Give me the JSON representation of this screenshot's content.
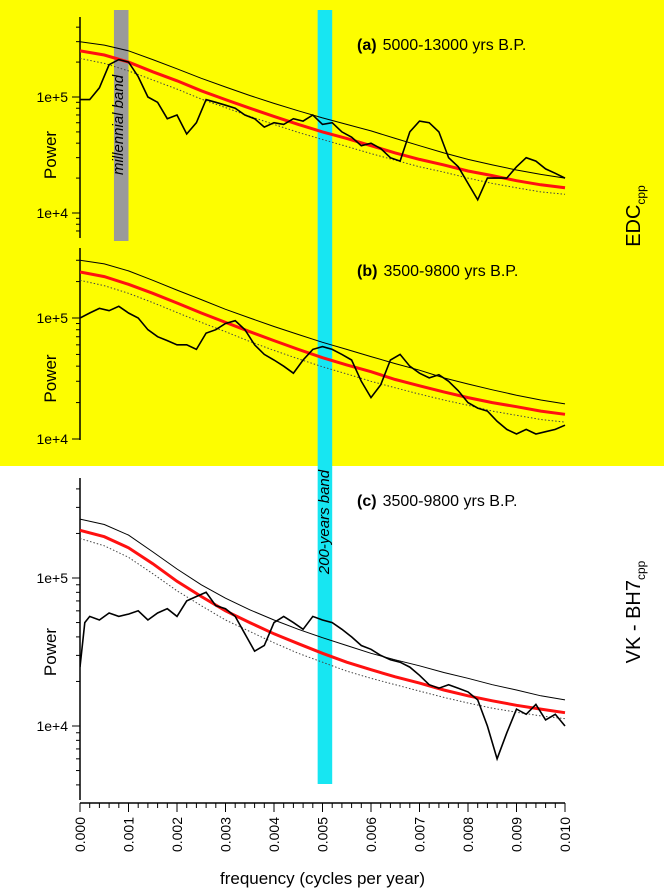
{
  "chart_data": {
    "type": "line",
    "xlabel": "frequency (cycles per year)",
    "xlim": [
      0.0,
      0.01
    ],
    "x_ticks": [
      "0.000",
      "0.001",
      "0.002",
      "0.003",
      "0.004",
      "0.005",
      "0.006",
      "0.007",
      "0.008",
      "0.009",
      "0.010"
    ],
    "y_scale": "log",
    "highlight_color": "#fdfd00",
    "band_color": "#17e6f2",
    "millennial_band": {
      "label": "millennial band",
      "x_range": [
        0.0007,
        0.001
      ],
      "color": "#9a9a9a"
    },
    "band_200yr": {
      "label": "200-years band",
      "x_range": [
        0.0049,
        0.0052
      ]
    },
    "group_labels": {
      "top": "EDC",
      "top_sub": "cpp",
      "bottom": "VK - BH7",
      "bottom_sub": "cpp"
    },
    "panels": [
      {
        "id": "a",
        "tag": "(a)",
        "title": "5000-13000 yrs B.P.",
        "ylabel": "Power",
        "ylim": [
          8000,
          400000
        ],
        "y_ticks": [
          {
            "value": 100000,
            "label": "1e+5"
          },
          {
            "value": 10000,
            "label": "1e+4"
          }
        ],
        "background": "#fdfd00",
        "series": [
          {
            "role": "spectrum",
            "color": "#000000",
            "x": [
              0.0,
              0.0002,
              0.0004,
              0.0006,
              0.0008,
              0.001,
              0.0012,
              0.0014,
              0.0016,
              0.0018,
              0.002,
              0.0022,
              0.0024,
              0.0026,
              0.0028,
              0.003,
              0.0032,
              0.0034,
              0.0036,
              0.0038,
              0.004,
              0.0042,
              0.0044,
              0.0046,
              0.0048,
              0.005,
              0.0052,
              0.0054,
              0.0056,
              0.0058,
              0.006,
              0.0062,
              0.0064,
              0.0066,
              0.0068,
              0.007,
              0.0072,
              0.0074,
              0.0076,
              0.0078,
              0.008,
              0.0082,
              0.0084,
              0.0086,
              0.0088,
              0.009,
              0.0092,
              0.0094,
              0.0096,
              0.0098,
              0.01
            ],
            "values": [
              95000,
              95000,
              120000,
              190000,
              210000,
              200000,
              150000,
              100000,
              90000,
              65000,
              70000,
              48000,
              60000,
              95000,
              90000,
              85000,
              80000,
              70000,
              65000,
              55000,
              60000,
              58000,
              65000,
              62000,
              70000,
              58000,
              60000,
              50000,
              45000,
              38000,
              40000,
              36000,
              30000,
              28000,
              50000,
              62000,
              60000,
              50000,
              30000,
              25000,
              18000,
              13000,
              20000,
              20000,
              20000,
              25000,
              30000,
              28000,
              24000,
              22000,
              20000
            ]
          },
          {
            "role": "mean",
            "color": "#ff1010",
            "x": [
              0.0,
              0.0005,
              0.001,
              0.0015,
              0.002,
              0.0025,
              0.003,
              0.0035,
              0.004,
              0.0045,
              0.005,
              0.0055,
              0.006,
              0.0065,
              0.007,
              0.0075,
              0.008,
              0.0085,
              0.009,
              0.0095,
              0.01
            ],
            "values": [
              250000,
              230000,
              200000,
              165000,
              138000,
              113000,
              95000,
              80000,
              68000,
              58000,
              50000,
              44000,
              38000,
              33000,
              29000,
              26000,
              23000,
              21000,
              19000,
              17500,
              16500
            ]
          },
          {
            "role": "upper",
            "color": "#000000",
            "x": [
              0.0,
              0.0005,
              0.001,
              0.0015,
              0.002,
              0.0025,
              0.003,
              0.0035,
              0.004,
              0.0045,
              0.005,
              0.0055,
              0.006,
              0.0065,
              0.007,
              0.0075,
              0.008,
              0.0085,
              0.009,
              0.0095,
              0.01
            ],
            "values": [
              300000,
              280000,
              250000,
              210000,
              175000,
              145000,
              122000,
              103000,
              88000,
              76000,
              66000,
              58000,
              51000,
              44000,
              38000,
              33000,
              29000,
              26000,
              23500,
              21500,
              20000
            ]
          },
          {
            "role": "lower",
            "color": "#444444",
            "x": [
              0.0,
              0.0005,
              0.001,
              0.0015,
              0.002,
              0.0025,
              0.003,
              0.0035,
              0.004,
              0.0045,
              0.005,
              0.0055,
              0.006,
              0.0065,
              0.007,
              0.0075,
              0.008,
              0.0085,
              0.009,
              0.0095,
              0.01
            ],
            "values": [
              215000,
              195000,
              168000,
              140000,
              117000,
              96000,
              81000,
              68000,
              58000,
              49500,
              43000,
              37500,
              32500,
              28500,
              25000,
              22500,
              20000,
              18000,
              16500,
              15200,
              14500
            ]
          }
        ]
      },
      {
        "id": "b",
        "tag": "(b)",
        "title": "3500-9800 yrs B.P.",
        "ylabel": "Power",
        "ylim": [
          8000,
          400000
        ],
        "y_ticks": [
          {
            "value": 100000,
            "label": "1e+5"
          },
          {
            "value": 10000,
            "label": "1e+4"
          }
        ],
        "background": "#fdfd00",
        "series": [
          {
            "role": "spectrum",
            "color": "#000000",
            "x": [
              0.0,
              0.0002,
              0.0004,
              0.0006,
              0.0008,
              0.001,
              0.0012,
              0.0014,
              0.0016,
              0.0018,
              0.002,
              0.0022,
              0.0024,
              0.0026,
              0.0028,
              0.003,
              0.0032,
              0.0034,
              0.0036,
              0.0038,
              0.004,
              0.0042,
              0.0044,
              0.0046,
              0.0048,
              0.005,
              0.0052,
              0.0054,
              0.0056,
              0.0058,
              0.006,
              0.0062,
              0.0064,
              0.0066,
              0.0068,
              0.007,
              0.0072,
              0.0074,
              0.0076,
              0.0078,
              0.008,
              0.0082,
              0.0084,
              0.0086,
              0.0088,
              0.009,
              0.0092,
              0.0094,
              0.0096,
              0.0098,
              0.01
            ],
            "values": [
              100000,
              110000,
              120000,
              115000,
              125000,
              110000,
              100000,
              80000,
              70000,
              65000,
              60000,
              60000,
              55000,
              75000,
              80000,
              90000,
              95000,
              80000,
              60000,
              50000,
              45000,
              40000,
              35000,
              45000,
              55000,
              58000,
              55000,
              50000,
              45000,
              30000,
              22000,
              28000,
              45000,
              50000,
              40000,
              35000,
              32000,
              34000,
              30000,
              25000,
              20000,
              18000,
              17000,
              14000,
              12000,
              11000,
              12000,
              11000,
              11500,
              12000,
              13000
            ]
          },
          {
            "role": "mean",
            "color": "#ff1010",
            "x": [
              0.0,
              0.0005,
              0.001,
              0.0015,
              0.002,
              0.0025,
              0.003,
              0.0035,
              0.004,
              0.0045,
              0.005,
              0.0055,
              0.006,
              0.0065,
              0.007,
              0.0075,
              0.008,
              0.0085,
              0.009,
              0.0095,
              0.01
            ],
            "values": [
              240000,
              220000,
              190000,
              160000,
              133000,
              110000,
              92000,
              77000,
              65000,
              55000,
              47000,
              41000,
              36000,
              31000,
              27500,
              24500,
              22000,
              20000,
              18500,
              17000,
              16000
            ]
          },
          {
            "role": "upper",
            "color": "#000000",
            "x": [
              0.0,
              0.0005,
              0.001,
              0.0015,
              0.002,
              0.0025,
              0.003,
              0.0035,
              0.004,
              0.0045,
              0.005,
              0.0055,
              0.006,
              0.0065,
              0.007,
              0.0075,
              0.008,
              0.0085,
              0.009,
              0.0095,
              0.01
            ],
            "values": [
              300000,
              280000,
              245000,
              205000,
              170000,
              142000,
              118000,
              100000,
              85000,
              73000,
              63000,
              55000,
              48000,
              42000,
              37000,
              32000,
              28500,
              25500,
              23000,
              21000,
              19500
            ]
          },
          {
            "role": "lower",
            "color": "#444444",
            "x": [
              0.0,
              0.0005,
              0.001,
              0.0015,
              0.002,
              0.0025,
              0.003,
              0.0035,
              0.004,
              0.0045,
              0.005,
              0.0055,
              0.006,
              0.0065,
              0.007,
              0.0075,
              0.008,
              0.0085,
              0.009,
              0.0095,
              0.01
            ],
            "values": [
              205000,
              185000,
              160000,
              134000,
              111000,
              92000,
              77000,
              64000,
              54000,
              46000,
              39500,
              34500,
              30000,
              26500,
              23500,
              21000,
              19000,
              17000,
              15700,
              14500,
              13800
            ]
          }
        ]
      },
      {
        "id": "c",
        "tag": "(c)",
        "title": "3500-9800 yrs B.P.",
        "ylabel": "Power",
        "ylim": [
          4000,
          400000
        ],
        "y_ticks": [
          {
            "value": 100000,
            "label": "1e+5"
          },
          {
            "value": 10000,
            "label": "1e+4"
          }
        ],
        "background": "#ffffff",
        "series": [
          {
            "role": "spectrum",
            "color": "#000000",
            "x": [
              0.0,
              0.0001,
              0.0002,
              0.0004,
              0.0006,
              0.0008,
              0.001,
              0.0012,
              0.0014,
              0.0016,
              0.0018,
              0.002,
              0.0022,
              0.0024,
              0.0026,
              0.0028,
              0.003,
              0.0032,
              0.0034,
              0.0036,
              0.0038,
              0.004,
              0.0042,
              0.0044,
              0.0046,
              0.0048,
              0.005,
              0.0052,
              0.0054,
              0.0056,
              0.0058,
              0.006,
              0.0062,
              0.0064,
              0.0066,
              0.0068,
              0.007,
              0.0072,
              0.0074,
              0.0076,
              0.0078,
              0.008,
              0.0082,
              0.0084,
              0.0086,
              0.0088,
              0.009,
              0.0092,
              0.0094,
              0.0096,
              0.0098,
              0.01
            ],
            "values": [
              25000,
              50000,
              55000,
              52000,
              58000,
              55000,
              57000,
              60000,
              52000,
              58000,
              62000,
              55000,
              70000,
              75000,
              80000,
              65000,
              62000,
              55000,
              42000,
              32000,
              35000,
              50000,
              55000,
              50000,
              45000,
              55000,
              52000,
              50000,
              45000,
              40000,
              35000,
              33000,
              30000,
              28000,
              27000,
              25000,
              22000,
              19000,
              18000,
              19000,
              18000,
              17000,
              15000,
              10000,
              6000,
              9000,
              13000,
              12000,
              14000,
              11000,
              12000,
              10000
            ]
          },
          {
            "role": "mean",
            "color": "#ff1010",
            "x": [
              0.0,
              0.0005,
              0.001,
              0.0015,
              0.002,
              0.0025,
              0.003,
              0.0035,
              0.004,
              0.0045,
              0.005,
              0.0055,
              0.006,
              0.0065,
              0.007,
              0.0075,
              0.008,
              0.0085,
              0.009,
              0.0095,
              0.01
            ],
            "values": [
              210000,
              190000,
              160000,
              125000,
              95000,
              75000,
              60000,
              50000,
              42000,
              36000,
              31000,
              27000,
              24000,
              21500,
              19500,
              17500,
              16000,
              14800,
              13800,
              13000,
              12300
            ]
          },
          {
            "role": "upper",
            "color": "#000000",
            "x": [
              0.0,
              0.0005,
              0.001,
              0.0015,
              0.002,
              0.0025,
              0.003,
              0.0035,
              0.004,
              0.0045,
              0.005,
              0.0055,
              0.006,
              0.0065,
              0.007,
              0.0075,
              0.008,
              0.0085,
              0.009,
              0.0095,
              0.01
            ],
            "values": [
              250000,
              230000,
              195000,
              150000,
              115000,
              90000,
              73000,
              61000,
              52000,
              45000,
              39500,
              35000,
              31000,
              28000,
              25500,
              23000,
              21000,
              19000,
              17500,
              16000,
              15000
            ]
          },
          {
            "role": "lower",
            "color": "#444444",
            "x": [
              0.0,
              0.0005,
              0.001,
              0.0015,
              0.002,
              0.0025,
              0.003,
              0.0035,
              0.004,
              0.0045,
              0.005,
              0.0055,
              0.006,
              0.0065,
              0.007,
              0.0075,
              0.008,
              0.0085,
              0.009,
              0.0095,
              0.01
            ],
            "values": [
              185000,
              165000,
              138000,
              107000,
              82000,
              65000,
              52000,
              43500,
              36500,
              31000,
              27000,
              23500,
              21000,
              19000,
              17200,
              15600,
              14300,
              13200,
              12400,
              11700,
              11200
            ]
          }
        ]
      }
    ]
  }
}
